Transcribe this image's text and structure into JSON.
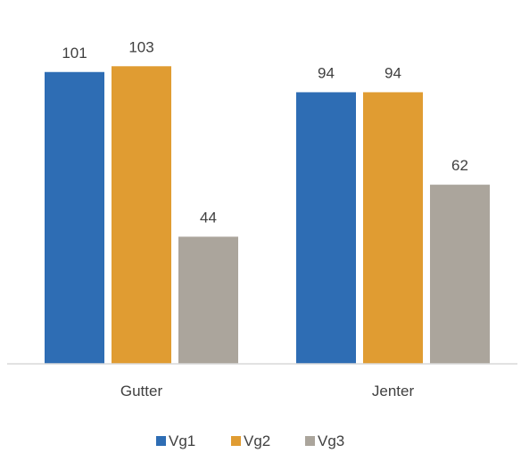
{
  "chart_data": {
    "type": "bar",
    "title": "",
    "xlabel": "",
    "ylabel": "",
    "categories": [
      "Gutter",
      "Jenter"
    ],
    "series": [
      {
        "name": "Vg1",
        "values": [
          101,
          94
        ],
        "color": "#2e6db4"
      },
      {
        "name": "Vg2",
        "values": [
          103,
          94
        ],
        "color": "#e09c32"
      },
      {
        "name": "Vg3",
        "values": [
          44,
          62
        ],
        "color": "#aba59c"
      }
    ],
    "ylim": [
      0,
      110
    ],
    "grid": false,
    "legend": "bottom",
    "axis_color": "#d9d9d9",
    "text_color": "#404040"
  }
}
